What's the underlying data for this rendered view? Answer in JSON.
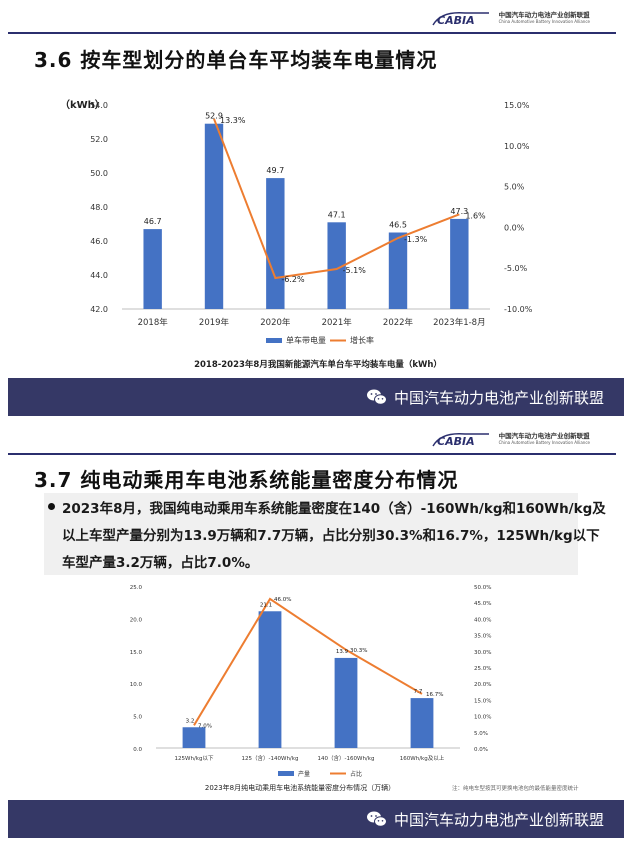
{
  "header": {
    "logo_text": "CABIA",
    "org_cn": "中国汽车动力电池产业创新联盟",
    "org_en": "China Automotive Battery Innovation Alliance"
  },
  "slide1": {
    "title": "3.6 按车型划分的单台车平均装车电量情况",
    "footer": "中国汽车动力电池产业创新联盟"
  },
  "slide2": {
    "title": "3.7 纯电动乘用车电池系统能量密度分布情况",
    "bullet_lines": [
      "2023年8月，我国纯电动乘用车系统能量密度在140（含）-160Wh/kg和160Wh/kg及",
      "以上车型产量分别为13.9万辆和7.7万辆，占比分别30.3%和16.7%，125Wh/kg以下",
      "车型产量3.2万辆，占比7.0%。"
    ],
    "footer": "中国汽车动力电池产业创新联盟"
  },
  "colors": {
    "bar": "#4472c4",
    "line": "#ed7d31",
    "footer_bg": "#353866",
    "accent": "#2b2f6e"
  },
  "chart_data": [
    {
      "type": "bar",
      "title": "2018-2023年8月我国新能源汽车单台车平均装车电量（kWh）",
      "ylabel": "（kWh）",
      "categories": [
        "2018年",
        "2019年",
        "2020年",
        "2021年",
        "2022年",
        "2023年1-8月"
      ],
      "ylim": [
        42.0,
        54.0
      ],
      "y_ticks": [
        "42.0",
        "44.0",
        "46.0",
        "48.0",
        "50.0",
        "52.0",
        "54.0"
      ],
      "y2lim": [
        -10.0,
        15.0
      ],
      "y2_ticks": [
        "-10.0%",
        "-5.0%",
        "0.0%",
        "5.0%",
        "10.0%",
        "15.0%"
      ],
      "series": [
        {
          "name": "单车带电量",
          "kind": "bar",
          "axis": "left",
          "values": [
            46.7,
            52.9,
            49.7,
            47.1,
            46.5,
            47.3
          ],
          "labels": [
            "46.7",
            "52.9",
            "49.7",
            "47.1",
            "46.5",
            "47.3"
          ]
        },
        {
          "name": "增长率",
          "kind": "line",
          "axis": "right",
          "values": [
            null,
            13.3,
            -6.2,
            -5.1,
            -1.3,
            1.6
          ],
          "labels": [
            "",
            "13.3%",
            "-6.2%",
            "-5.1%",
            "-1.3%",
            "1.6%"
          ]
        }
      ],
      "legend": "bottom",
      "grid": false
    },
    {
      "type": "bar",
      "title": "2023年8月纯电动乘用车电池系统能量密度分布情况（万辆）",
      "note": "注：纯电车型按其可更换电池包的最低能量密度统计",
      "categories": [
        "125Wh/kg以下",
        "125（含）-140Wh/kg",
        "140（含）-160Wh/kg",
        "160Wh/kg及以上"
      ],
      "ylim": [
        0.0,
        25.0
      ],
      "y_ticks": [
        "0.0",
        "5.0",
        "10.0",
        "15.0",
        "20.0",
        "25.0"
      ],
      "y2lim": [
        0.0,
        50.0
      ],
      "y2_ticks": [
        "0.0%",
        "5.0%",
        "10.0%",
        "15.0%",
        "20.0%",
        "25.0%",
        "30.0%",
        "35.0%",
        "40.0%",
        "45.0%",
        "50.0%"
      ],
      "series": [
        {
          "name": "产量",
          "kind": "bar",
          "axis": "left",
          "values": [
            3.2,
            21.1,
            13.9,
            7.7
          ],
          "labels": [
            "3.2",
            "21.1",
            "13.9",
            "7.7"
          ]
        },
        {
          "name": "占比",
          "kind": "line",
          "axis": "right",
          "values": [
            7.0,
            46.0,
            30.3,
            16.7
          ],
          "labels": [
            "7.0%",
            "46.0%",
            "30.3%",
            "16.7%"
          ]
        }
      ],
      "legend": "bottom",
      "grid": false
    }
  ]
}
